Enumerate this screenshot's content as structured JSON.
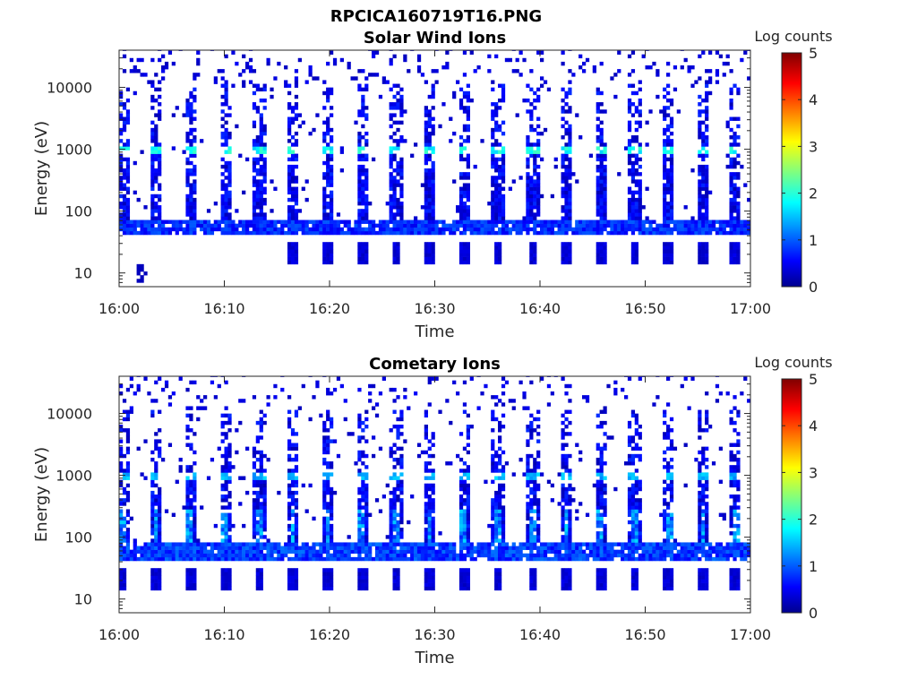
{
  "figure_title": "RPCICA160719T16.PNG",
  "chart_data": [
    {
      "type": "heatmap",
      "title": "Solar Wind Ions",
      "xlabel": "Time",
      "ylabel": "Energy (eV)",
      "x_ticks": [
        "16:00",
        "16:10",
        "16:20",
        "16:30",
        "16:40",
        "16:50",
        "17:00"
      ],
      "x_range": [
        "16:00",
        "17:00"
      ],
      "y_scale": "log",
      "y_ticks": [
        10,
        100,
        1000,
        10000
      ],
      "y_range": [
        6,
        40000
      ],
      "colorbar": {
        "title": "Log counts",
        "range": [
          0,
          5
        ],
        "ticks": [
          0,
          1,
          2,
          3,
          4,
          5
        ],
        "colormap": "jet"
      },
      "sweep_times_min": [
        0.3,
        3.5,
        6.8,
        10.1,
        13.3,
        16.5,
        19.8,
        23.1,
        26.3,
        29.5,
        32.8,
        36.0,
        39.3,
        42.5,
        45.8,
        49.0,
        52.2,
        55.5,
        58.6
      ],
      "bands": [
        {
          "label": "low-energy band",
          "e_min": 40,
          "e_max": 75,
          "log_counts": 0.9
        },
        {
          "label": "peak",
          "e_min": 850,
          "e_max": 1150,
          "log_counts": 1.9
        }
      ]
    },
    {
      "type": "heatmap",
      "title": "Cometary Ions",
      "xlabel": "Time",
      "ylabel": "Energy (eV)",
      "x_ticks": [
        "16:00",
        "16:10",
        "16:20",
        "16:30",
        "16:40",
        "16:50",
        "17:00"
      ],
      "x_range": [
        "16:00",
        "17:00"
      ],
      "y_scale": "log",
      "y_ticks": [
        10,
        100,
        1000,
        10000
      ],
      "y_range": [
        6,
        40000
      ],
      "colorbar": {
        "title": "Log counts",
        "range": [
          0,
          5
        ],
        "ticks": [
          0,
          1,
          2,
          3,
          4,
          5
        ],
        "colormap": "jet"
      },
      "sweep_times_min": [
        0.3,
        3.5,
        6.8,
        10.1,
        13.3,
        16.5,
        19.8,
        23.1,
        26.3,
        29.5,
        32.8,
        36.0,
        39.3,
        42.5,
        45.8,
        49.0,
        52.2,
        55.5,
        58.6
      ],
      "bands": [
        {
          "label": "low-energy band",
          "e_min": 40,
          "e_max": 80,
          "log_counts": 1.0
        },
        {
          "label": "peak",
          "e_min": 850,
          "e_max": 1150,
          "log_counts": 1.5
        }
      ]
    }
  ]
}
